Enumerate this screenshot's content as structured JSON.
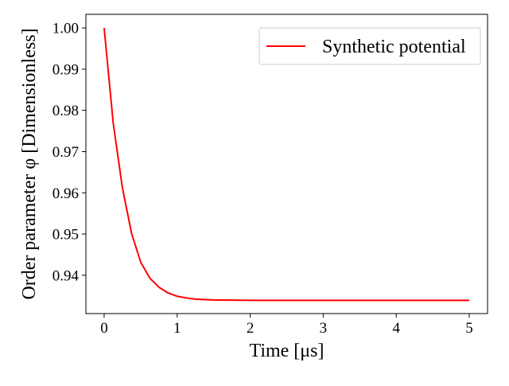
{
  "chart_data": {
    "type": "line",
    "title": "",
    "xlabel": "Time [μs]",
    "ylabel": "Order parameter φ [Dimensionless]",
    "xlim": [
      -0.25,
      5.25
    ],
    "ylim": [
      0.9307,
      1.0033
    ],
    "x_ticks": [
      {
        "value": 0,
        "label": "0"
      },
      {
        "value": 1,
        "label": "1"
      },
      {
        "value": 2,
        "label": "2"
      },
      {
        "value": 3,
        "label": "3"
      },
      {
        "value": 4,
        "label": "4"
      },
      {
        "value": 5,
        "label": "5"
      }
    ],
    "y_ticks": [
      {
        "value": 0.94,
        "label": "0.94"
      },
      {
        "value": 0.95,
        "label": "0.95"
      },
      {
        "value": 0.96,
        "label": "0.96"
      },
      {
        "value": 0.97,
        "label": "0.97"
      },
      {
        "value": 0.98,
        "label": "0.98"
      },
      {
        "value": 0.99,
        "label": "0.99"
      },
      {
        "value": 1.0,
        "label": "1.00"
      }
    ],
    "grid": false,
    "legend_position": "upper right",
    "series": [
      {
        "name": "Synthetic potential",
        "color": "#ff0000",
        "x": [
          0,
          0.125,
          0.25,
          0.375,
          0.5,
          0.625,
          0.75,
          0.875,
          1.0,
          1.125,
          1.25,
          1.375,
          1.5,
          1.75,
          2.0,
          2.5,
          3.0,
          3.5,
          4.0,
          4.5,
          5.0
        ],
        "y": [
          1.0,
          0.9768,
          0.9612,
          0.9502,
          0.9432,
          0.9393,
          0.9371,
          0.9357,
          0.9349,
          0.9345,
          0.9342,
          0.9341,
          0.934,
          0.93395,
          0.9339,
          0.9339,
          0.9339,
          0.9339,
          0.9339,
          0.9339,
          0.9339
        ]
      }
    ]
  }
}
